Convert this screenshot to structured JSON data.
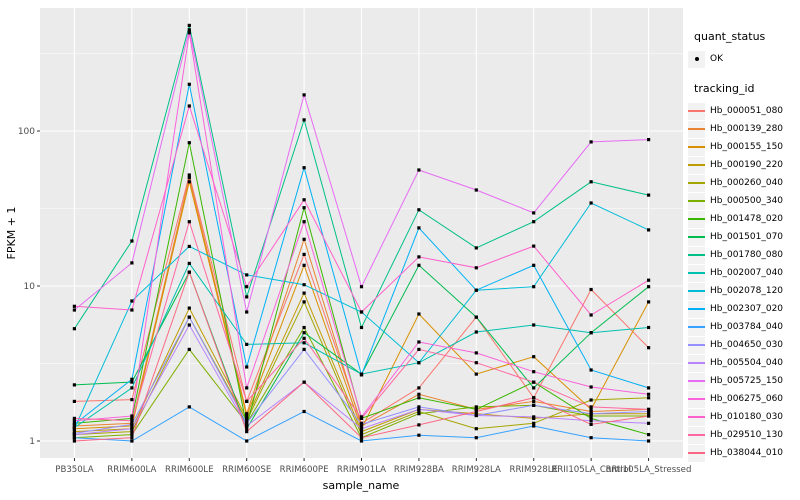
{
  "chart_data": {
    "type": "line",
    "title": "",
    "xlabel": "sample_name",
    "ylabel": "FPKM + 1",
    "y_scale": "log10",
    "ylim": [
      1,
      600
    ],
    "y_ticks": [
      1,
      10,
      100
    ],
    "y_minor_ticks": [
      3.162,
      31.62,
      316.2
    ],
    "grid": "on",
    "legend_position": "right",
    "panel_bg": "#EBEBEB",
    "grid_color": "#FFFFFF",
    "marker_color": "#000000",
    "categories": [
      "PB350LA",
      "RRIM600LA",
      "RRIM600LE",
      "RRIM600SE",
      "RRIM600PE",
      "RRIM901LA",
      "RRIM928BA",
      "RRIM928LA",
      "RRIM928LE",
      "RRII105LA_Control",
      "RRII105LA_Stressed"
    ],
    "series": [
      {
        "name": "Hb_000051_080",
        "color": "#F8766D",
        "values": [
          1.8,
          1.85,
          52,
          1.8,
          16,
          1.3,
          2.2,
          6.3,
          1.9,
          9.5,
          4.0
        ]
      },
      {
        "name": "Hb_000139_280",
        "color": "#EA8331",
        "values": [
          1.25,
          1.3,
          50,
          1.5,
          20,
          1.25,
          2.0,
          1.6,
          1.8,
          1.55,
          1.6
        ]
      },
      {
        "name": "Hb_000155_150",
        "color": "#D89000",
        "values": [
          1.2,
          1.25,
          47,
          1.45,
          13.6,
          1.2,
          6.6,
          2.7,
          3.5,
          1.6,
          7.9
        ]
      },
      {
        "name": "Hb_000190_220",
        "color": "#C09B00",
        "values": [
          1.15,
          1.2,
          7.2,
          1.4,
          9.0,
          1.15,
          1.6,
          1.5,
          1.4,
          1.5,
          1.5
        ]
      },
      {
        "name": "Hb_000260_040",
        "color": "#A3A500",
        "values": [
          1.1,
          1.15,
          6.3,
          1.35,
          7.9,
          1.1,
          1.55,
          1.2,
          1.3,
          1.84,
          1.9
        ]
      },
      {
        "name": "Hb_000500_340",
        "color": "#7CAE00",
        "values": [
          1.05,
          1.1,
          3.9,
          1.3,
          5.4,
          1.05,
          1.5,
          1.66,
          1.7,
          1.45,
          1.45
        ]
      },
      {
        "name": "Hb_001478_020",
        "color": "#39B600",
        "values": [
          1.3,
          1.4,
          84,
          1.25,
          32,
          1.4,
          1.9,
          1.6,
          2.4,
          1.4,
          1.1
        ]
      },
      {
        "name": "Hb_001501_070",
        "color": "#00BB4E",
        "values": [
          2.3,
          2.4,
          12.3,
          1.2,
          5.0,
          2.7,
          13.6,
          6.3,
          2.2,
          5.0,
          9.9
        ]
      },
      {
        "name": "Hb_001780_080",
        "color": "#00C087",
        "values": [
          5.3,
          19.5,
          480,
          8.5,
          118,
          5.4,
          31,
          17.6,
          26,
          47,
          38.6
        ]
      },
      {
        "name": "Hb_002007_040",
        "color": "#00C0AF",
        "values": [
          1.22,
          2.2,
          14,
          4.2,
          4.3,
          2.7,
          3.2,
          5.05,
          5.6,
          5.0,
          5.4
        ]
      },
      {
        "name": "Hb_002078_120",
        "color": "#00BCD8",
        "values": [
          1.2,
          8.0,
          18,
          11.8,
          10.2,
          6.8,
          3.2,
          9.4,
          9.9,
          34.3,
          23
        ]
      },
      {
        "name": "Hb_002307_020",
        "color": "#00B0F6",
        "values": [
          1.28,
          2.5,
          200,
          3.0,
          58,
          2.67,
          23.7,
          9.4,
          13.6,
          2.87,
          2.2
        ]
      },
      {
        "name": "Hb_003784_040",
        "color": "#35A2FF",
        "values": [
          1.05,
          1.0,
          1.66,
          1.0,
          1.55,
          1.0,
          1.09,
          1.05,
          1.25,
          1.05,
          1.0
        ]
      },
      {
        "name": "Hb_004650_030",
        "color": "#9590FF",
        "values": [
          1.12,
          1.28,
          6.3,
          1.3,
          3.9,
          1.28,
          1.66,
          1.46,
          1.7,
          1.5,
          1.55
        ]
      },
      {
        "name": "Hb_005504_040",
        "color": "#B983FF",
        "values": [
          1.1,
          1.2,
          5.6,
          1.25,
          2.4,
          1.2,
          1.6,
          1.46,
          1.43,
          1.35,
          1.3
        ]
      },
      {
        "name": "Hb_005725_150",
        "color": "#E76BF3",
        "values": [
          7.0,
          14.1,
          450,
          6.8,
          171,
          9.9,
          56,
          41.6,
          29.6,
          85,
          88
        ]
      },
      {
        "name": "Hb_006275_060",
        "color": "#FA62DB",
        "values": [
          1.35,
          1.45,
          430,
          2.2,
          26,
          1.43,
          4.35,
          3.7,
          2.8,
          2.23,
          2.0
        ]
      },
      {
        "name": "Hb_010180_030",
        "color": "#FF61CC",
        "values": [
          7.4,
          7.0,
          145,
          9.9,
          36,
          6.8,
          15.4,
          13.1,
          18.1,
          6.5,
          10.9
        ]
      },
      {
        "name": "Hb_029510_130",
        "color": "#FF68A1",
        "values": [
          1.4,
          1.35,
          26,
          1.8,
          4.6,
          1.4,
          3.9,
          3.2,
          2.4,
          1.66,
          1.6
        ]
      },
      {
        "name": "Hb_038044_010",
        "color": "#FC6883",
        "values": [
          1.0,
          1.05,
          12.3,
          1.15,
          2.4,
          1.05,
          1.27,
          1.55,
          1.9,
          1.28,
          1.45
        ]
      }
    ]
  },
  "legend": {
    "quant_status": {
      "title": "quant_status",
      "items": [
        {
          "label": "OK"
        }
      ]
    },
    "tracking_id": {
      "title": "tracking_id"
    }
  }
}
